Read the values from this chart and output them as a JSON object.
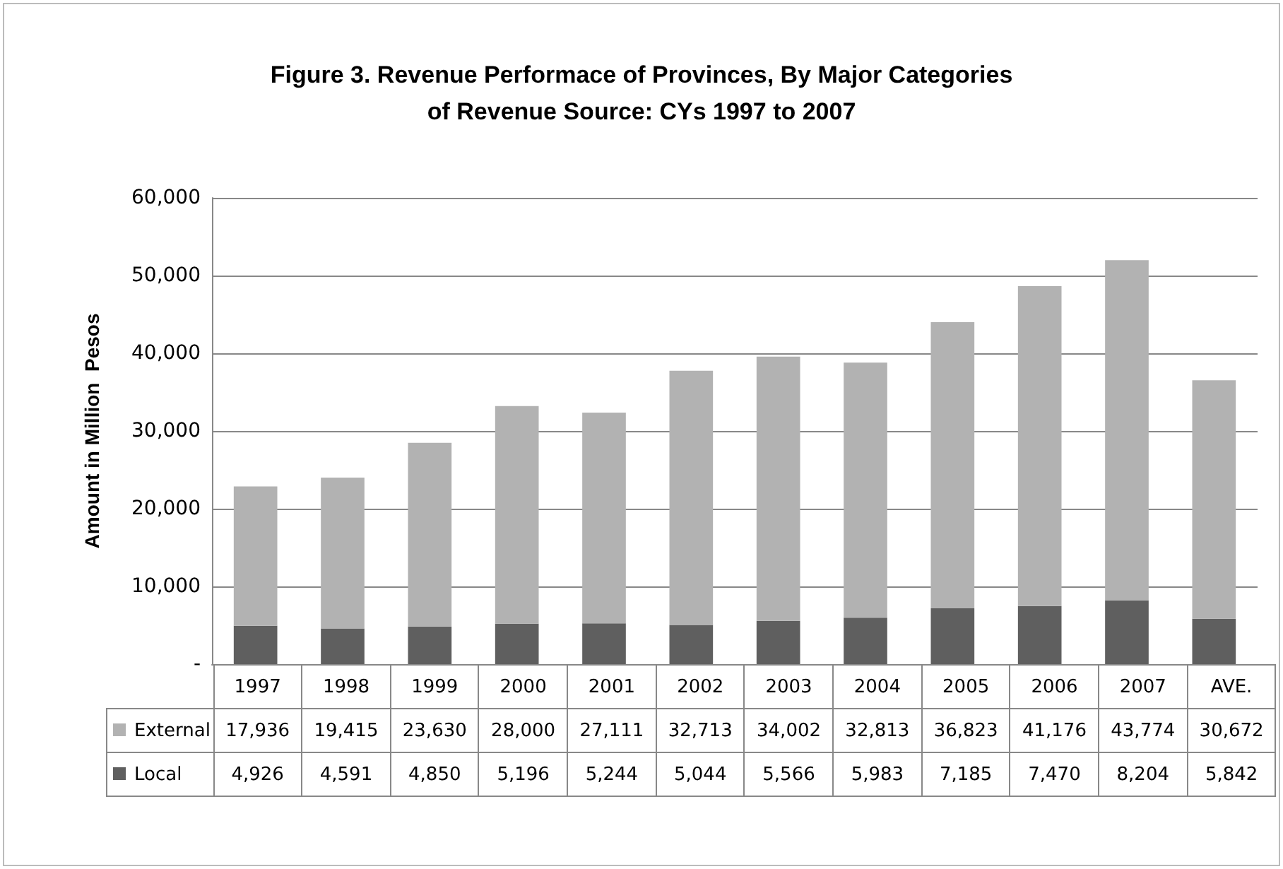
{
  "chart_data": {
    "type": "bar",
    "stacked": true,
    "title": "Figure 3. Revenue Performace of Provinces, By Major Categories\nof Revenue Source: CYs 1997 to 2007",
    "ylabel": "Amount in Million  Pesos",
    "categories": [
      "1997",
      "1998",
      "1999",
      "2000",
      "2001",
      "2002",
      "2003",
      "2004",
      "2005",
      "2006",
      "2007",
      "AVE."
    ],
    "series": [
      {
        "name": "Local",
        "color": "#5f5f5f",
        "values": [
          4926,
          4591,
          4850,
          5196,
          5244,
          5044,
          5566,
          5983,
          7185,
          7470,
          8204,
          5842
        ],
        "value_labels": [
          "4,926",
          "4,591",
          "4,850",
          "5,196",
          "5,244",
          "5,044",
          "5,566",
          "5,983",
          "7,185",
          "7,470",
          "8,204",
          "5,842"
        ]
      },
      {
        "name": "External",
        "color": "#b2b2b2",
        "values": [
          17936,
          19415,
          23630,
          28000,
          27111,
          32713,
          34002,
          32813,
          36823,
          41176,
          43774,
          30672
        ],
        "value_labels": [
          "17,936",
          "19,415",
          "23,630",
          "28,000",
          "27,111",
          "32,713",
          "34,002",
          "32,813",
          "36,823",
          "41,176",
          "43,774",
          "30,672"
        ]
      }
    ],
    "ylim": [
      0,
      60000
    ],
    "yticks": [
      {
        "value": 0,
        "label": "-"
      },
      {
        "value": 10000,
        "label": "10,000"
      },
      {
        "value": 20000,
        "label": "20,000"
      },
      {
        "value": 30000,
        "label": "30,000"
      },
      {
        "value": 40000,
        "label": "40,000"
      },
      {
        "value": 50000,
        "label": "50,000"
      },
      {
        "value": 60000,
        "label": "60,000"
      }
    ],
    "grid": "y",
    "legend": "bottom left"
  }
}
